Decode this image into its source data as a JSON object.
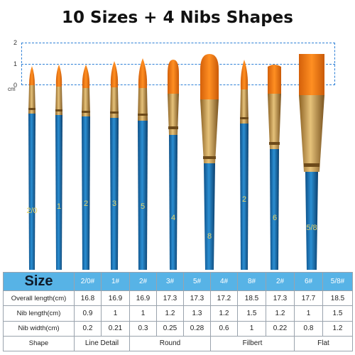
{
  "title": "10 Sizes + 4 Nibs Shapes",
  "scale": {
    "ticks": [
      "2",
      "1",
      "0"
    ],
    "unit": "cm"
  },
  "brushes": {
    "handle_color": "#1f74b8",
    "ferrule_color": "#c99a4c",
    "bristle_color": "#f07d16",
    "handle_labels": [
      "2/0",
      "1",
      "2",
      "3",
      "5",
      "4",
      "8",
      "2",
      "6",
      "5/8"
    ]
  },
  "table": {
    "size_label": "Size",
    "sizes": [
      "2/0#",
      "1#",
      "2#",
      "3#",
      "5#",
      "4#",
      "8#",
      "2#",
      "6#",
      "5/8#"
    ],
    "rows": [
      {
        "label": "Overall length(cm)",
        "values": [
          "16.8",
          "16.9",
          "16.9",
          "17.3",
          "17.3",
          "17.2",
          "18.5",
          "17.3",
          "17.7",
          "18.5"
        ]
      },
      {
        "label": "Nib length(cm)",
        "values": [
          "0.9",
          "1",
          "1",
          "1.2",
          "1.3",
          "1.2",
          "1.5",
          "1.2",
          "1",
          "1.5"
        ]
      },
      {
        "label": "Nib width(cm)",
        "values": [
          "0.2",
          "0.21",
          "0.3",
          "0.25",
          "0.28",
          "0.6",
          "1",
          "0.22",
          "0.8",
          "1.2"
        ]
      }
    ],
    "shape_label": "Shape",
    "shapes": [
      "Line Detail",
      "Round",
      "Filbert",
      "Flat"
    ]
  }
}
